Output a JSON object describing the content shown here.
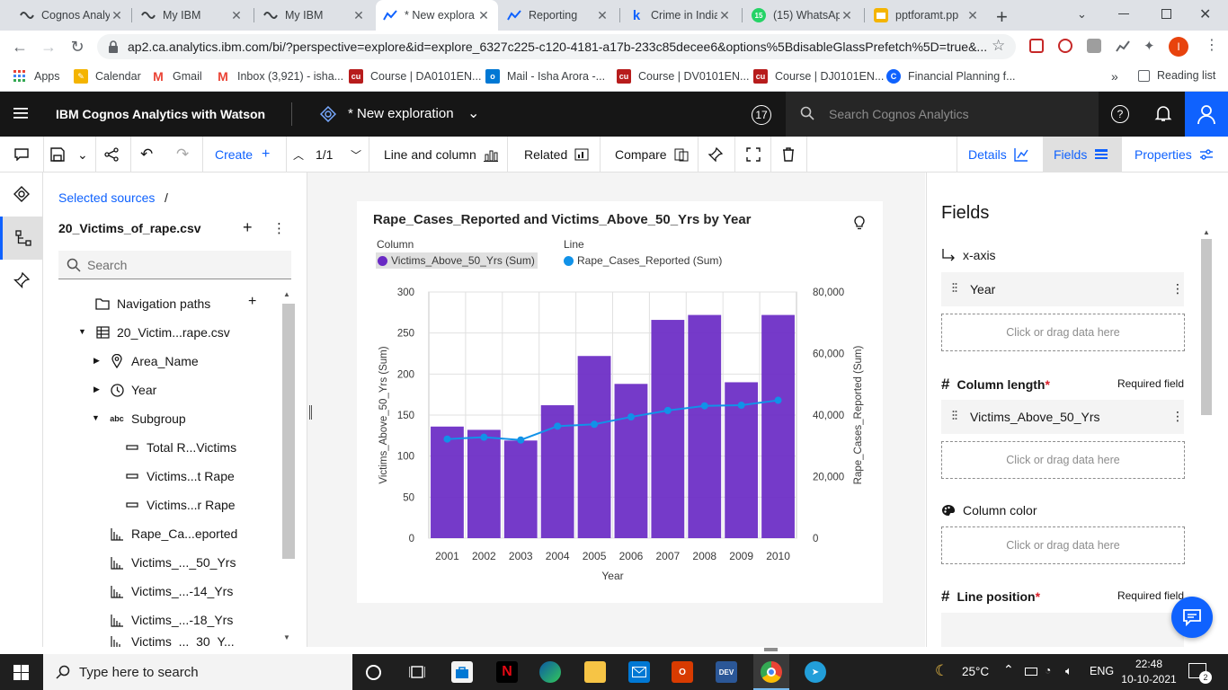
{
  "browser": {
    "tabs": [
      {
        "title": "Cognos Analy",
        "icon": "cognos-icon"
      },
      {
        "title": "My IBM",
        "icon": "cognos-icon"
      },
      {
        "title": "My IBM",
        "icon": "cognos-icon"
      },
      {
        "title": "* New explora",
        "icon": "exploration-icon",
        "active": true
      },
      {
        "title": "Reporting",
        "icon": "reporting-icon"
      },
      {
        "title": "Crime in India",
        "icon": "k-icon"
      },
      {
        "title": "(15) WhatsAp",
        "icon": "whatsapp-icon",
        "badge": "15"
      },
      {
        "title": "pptforamt.pp",
        "icon": "slides-icon"
      }
    ],
    "url": "ap2.ca.analytics.ibm.com/bi/?perspective=explore&id=explore_6327c225-c120-4181-a17b-233c85decee6&options%5BdisableGlassPrefetch%5D=true&...",
    "bookmarks": [
      {
        "label": "Apps",
        "icon": "apps-grid-icon"
      },
      {
        "label": "Calendar",
        "icon": "calendar-icon"
      },
      {
        "label": "Gmail",
        "icon": "gmail-icon"
      },
      {
        "label": "Inbox (3,921) - isha...",
        "icon": "gmail-icon"
      },
      {
        "label": "Course | DA0101EN...",
        "icon": "course-icon"
      },
      {
        "label": "Mail - Isha Arora -...",
        "icon": "outlook-icon"
      },
      {
        "label": "Course | DV0101EN...",
        "icon": "course-icon"
      },
      {
        "label": "Course | DJ0101EN...",
        "icon": "course-icon"
      },
      {
        "label": "Financial Planning f...",
        "icon": "globe-icon"
      }
    ],
    "reading_list": "Reading list",
    "more": "»"
  },
  "app": {
    "brand": "IBM Cognos Analytics with Watson",
    "exploration_title": "* New exploration",
    "notification_count": "17",
    "search_placeholder": "Search Cognos Analytics"
  },
  "toolbar": {
    "create": "Create",
    "page_indicator": "1/1",
    "visualization": "Line and column",
    "related": "Related",
    "compare": "Compare",
    "details": "Details",
    "fields": "Fields",
    "properties": "Properties"
  },
  "sources": {
    "breadcrumb": "Selected sources",
    "breadcrumb_sep": "/",
    "file": "20_Victims_of_rape.csv",
    "search_placeholder": "Search",
    "tree": [
      {
        "label": "Navigation paths",
        "icon": "folder-icon"
      },
      {
        "label": "20_Victim...rape.csv",
        "icon": "table-icon"
      },
      {
        "label": "Area_Name",
        "icon": "location-icon"
      },
      {
        "label": "Year",
        "icon": "clock-icon"
      },
      {
        "label": "Subgroup",
        "icon": "text-icon"
      },
      {
        "label": "Total R...Victims",
        "icon": "attribute-icon"
      },
      {
        "label": "Victims...t Rape",
        "icon": "attribute-icon"
      },
      {
        "label": "Victims...r Rape",
        "icon": "attribute-icon"
      },
      {
        "label": "Rape_Ca...eported",
        "icon": "measure-icon"
      },
      {
        "label": "Victims_..._50_Yrs",
        "icon": "measure-icon"
      },
      {
        "label": "Victims_...-14_Yrs",
        "icon": "measure-icon"
      },
      {
        "label": "Victims_...-18_Yrs",
        "icon": "measure-icon"
      },
      {
        "label": "Victims_..._30_Y...",
        "icon": "measure-icon"
      }
    ],
    "abc": "abc"
  },
  "chart_data": {
    "type": "bar",
    "title": "Rape_Cases_Reported and Victims_Above_50_Yrs by Year",
    "legend": [
      {
        "group": "Column",
        "label": "Victims_Above_50_Yrs (Sum)",
        "color": "#6929c4"
      },
      {
        "group": "Line",
        "label": "Rape_Cases_Reported (Sum)",
        "color": "#1192e8"
      }
    ],
    "categories": [
      "2001",
      "2002",
      "2003",
      "2004",
      "2005",
      "2006",
      "2007",
      "2008",
      "2009",
      "2010"
    ],
    "series": [
      {
        "name": "Victims_Above_50_Yrs (Sum)",
        "kind": "column",
        "axis": "left",
        "color": "#6929c4",
        "values": [
          136,
          132,
          119,
          162,
          222,
          188,
          266,
          272,
          190,
          272
        ]
      },
      {
        "name": "Rape_Cases_Reported (Sum)",
        "kind": "line",
        "axis": "right",
        "color": "#1192e8",
        "values": [
          32200,
          32800,
          31900,
          36400,
          37000,
          39400,
          41500,
          43000,
          43200,
          44800
        ]
      }
    ],
    "xlabel": "Year",
    "ylabel": "Victims_Above_50_Yrs (Sum)",
    "ylabel_right": "Rape_Cases_Reported (Sum)",
    "ylim": [
      0,
      300
    ],
    "yticks": [
      "300",
      "250",
      "200",
      "150",
      "100",
      "50",
      "0"
    ],
    "ylim_right": [
      0,
      80000
    ],
    "yticks_right": [
      "80,000",
      "60,000",
      "40,000",
      "20,000",
      "0"
    ],
    "grid": true
  },
  "fields_panel": {
    "title": "Fields",
    "xaxis_label": "x-axis",
    "xaxis_field": "Year",
    "drop_hint": "Click or drag data here",
    "column_length_label": "Column length",
    "required_star": "*",
    "required_text": "Required field",
    "column_length_field": "Victims_Above_50_Yrs",
    "column_color_label": "Column color",
    "line_position_label": "Line position"
  },
  "taskbar": {
    "search_placeholder": "Type here to search",
    "temperature": "25°C",
    "language": "ENG",
    "time": "22:48",
    "date": "10-10-2021",
    "notifications": "2"
  }
}
